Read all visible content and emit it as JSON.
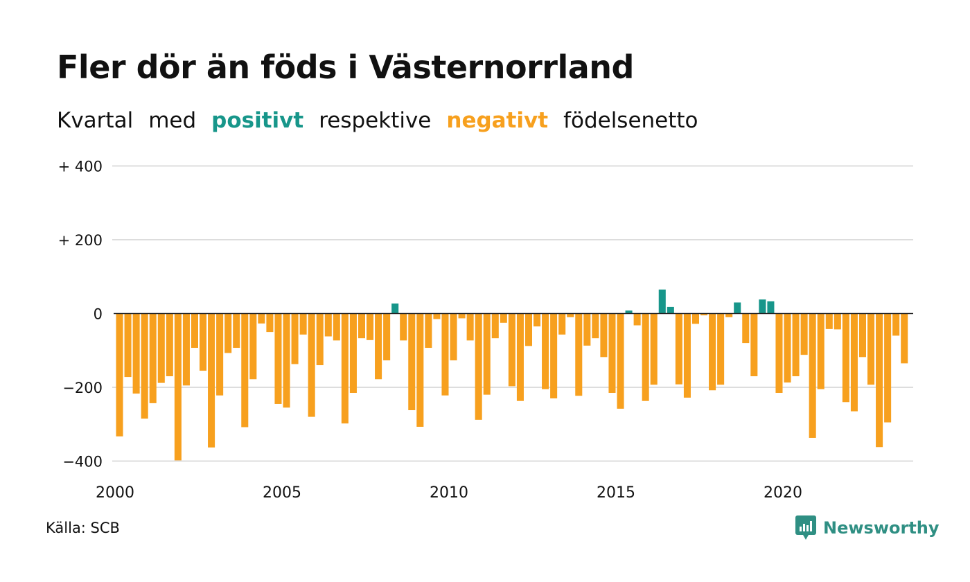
{
  "title": "Fler dör än föds i Västernorrland",
  "subtitle": {
    "w1": "Kvartal",
    "w2": "med",
    "positive": "positivt",
    "w3": "respektive",
    "negative": "negativt",
    "w4": "födelsenetto"
  },
  "colors": {
    "positive": "#17968a",
    "negative": "#f7a01e",
    "grid": "#dddddd",
    "zero_line": "#222222"
  },
  "source": "Källa: SCB",
  "logo": {
    "text": "Newsworthy",
    "icon": "newsworthy-logo-icon"
  },
  "chart_data": {
    "type": "bar",
    "x_ticks": [
      "2000",
      "2005",
      "2010",
      "2015",
      "2020"
    ],
    "y_ticks": [
      {
        "value": 400,
        "label": "+ 400"
      },
      {
        "value": 200,
        "label": "+ 200"
      },
      {
        "value": 0,
        "label": "0"
      },
      {
        "value": -200,
        "label": "−200"
      },
      {
        "value": -400,
        "label": "−400"
      }
    ],
    "ylim": [
      -400,
      400
    ],
    "grid": true,
    "start_year": 2000,
    "start_quarter": 1,
    "values": [
      -333,
      -172,
      -217,
      -285,
      -243,
      -188,
      -170,
      -398,
      -195,
      -93,
      -155,
      -363,
      -222,
      -107,
      -93,
      -308,
      -178,
      -27,
      -50,
      -245,
      -255,
      -137,
      -57,
      -280,
      -140,
      -62,
      -73,
      -298,
      -215,
      -67,
      -72,
      -178,
      -127,
      27,
      -73,
      -262,
      -307,
      -93,
      -15,
      -222,
      -127,
      -13,
      -73,
      -288,
      -220,
      -67,
      -25,
      -197,
      -237,
      -88,
      -35,
      -205,
      -230,
      -57,
      -10,
      -223,
      -87,
      -67,
      -118,
      -215,
      -258,
      8,
      -32,
      -237,
      -193,
      65,
      18,
      -192,
      -228,
      -28,
      -5,
      -208,
      -193,
      -10,
      30,
      -80,
      -170,
      38,
      33,
      -215,
      -187,
      -170,
      -112,
      -337,
      -205,
      -42,
      -43,
      -240,
      -265,
      -118,
      -193,
      -362,
      -295,
      -60,
      -135
    ]
  }
}
